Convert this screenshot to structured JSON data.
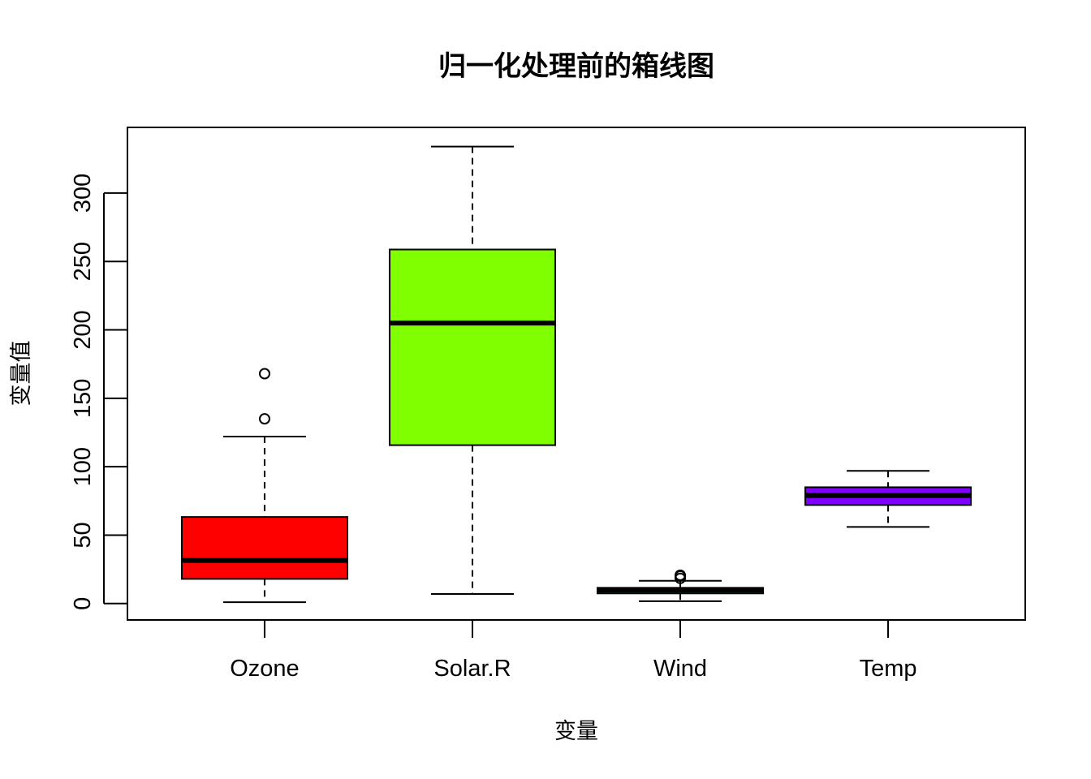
{
  "chart_data": {
    "type": "boxplot",
    "title": "归一化处理前的箱线图",
    "xlabel": "变量",
    "ylabel": "变量值",
    "ylim": [
      -12,
      348
    ],
    "yticks": [
      0,
      50,
      100,
      150,
      200,
      250,
      300
    ],
    "categories": [
      "Ozone",
      "Solar.R",
      "Wind",
      "Temp"
    ],
    "colors": [
      "#FF0000",
      "#80FF00",
      "#00FFFF",
      "#8000FF"
    ],
    "boxes": [
      {
        "name": "Ozone",
        "whisker_low": 1,
        "q1": 18,
        "median": 31.5,
        "q3": 63.25,
        "whisker_high": 122,
        "outliers": [
          135,
          168
        ]
      },
      {
        "name": "Solar.R",
        "whisker_low": 7,
        "q1": 115.75,
        "median": 205,
        "q3": 258.75,
        "whisker_high": 334,
        "outliers": []
      },
      {
        "name": "Wind",
        "whisker_low": 1.7,
        "q1": 7.4,
        "median": 9.7,
        "q3": 11.5,
        "whisker_high": 16.6,
        "outliers": [
          20.1,
          18.4,
          20.7
        ]
      },
      {
        "name": "Temp",
        "whisker_low": 56,
        "q1": 72,
        "median": 79,
        "q3": 85,
        "whisker_high": 97,
        "outliers": []
      }
    ],
    "grid": false,
    "legend": "none"
  }
}
